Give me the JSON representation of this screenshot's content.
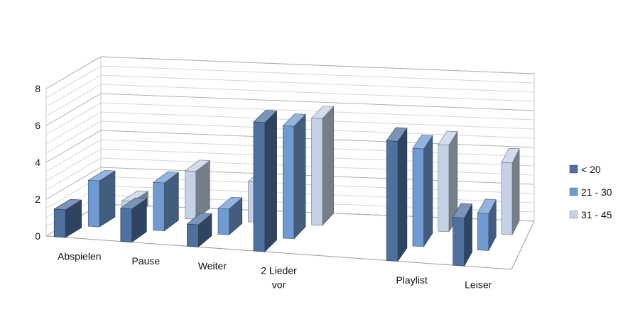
{
  "chart_data": {
    "type": "bar",
    "categories": [
      "Abspielen",
      "Pause",
      "Weiter",
      "2 Lieder vor",
      "",
      "Playlist",
      "Leiser"
    ],
    "category_lines": [
      [
        "Abspielen"
      ],
      [
        "Pause"
      ],
      [
        "Weiter"
      ],
      [
        "2 Lieder",
        "vor"
      ],
      [
        ""
      ],
      [
        "Playlist"
      ],
      [
        "Leiser"
      ]
    ],
    "series": [
      {
        "name": "< 20",
        "values": [
          1.5,
          1.8,
          1.2,
          7.0,
          null,
          6.5,
          2.6
        ],
        "color": "#4F71A0"
      },
      {
        "name": "21 - 30",
        "values": [
          2.5,
          2.6,
          1.4,
          6.1,
          null,
          5.3,
          2.0
        ],
        "color": "#6F9BD2"
      },
      {
        "name": "31 - 45",
        "values": [
          0.8,
          2.6,
          2.2,
          5.8,
          null,
          4.7,
          3.9
        ],
        "color": "#C5D2E6"
      }
    ],
    "ylim": [
      0,
      8
    ],
    "yticks": [
      0,
      2,
      4,
      6,
      8
    ],
    "grid": true,
    "legend": "right",
    "title": "",
    "xlabel": "",
    "ylabel": ""
  }
}
